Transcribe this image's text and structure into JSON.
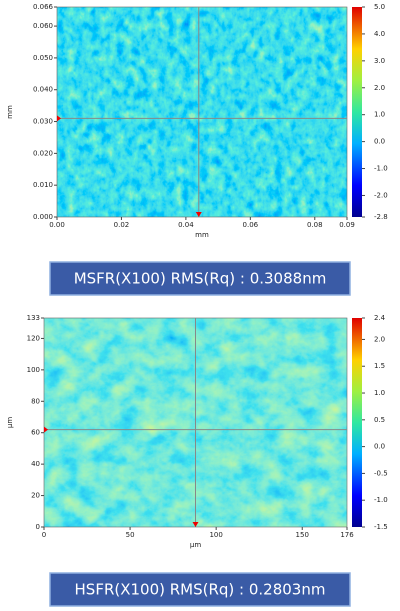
{
  "chart_data": [
    {
      "type": "heatmap",
      "xlabel": "mm",
      "ylabel": "mm",
      "xlim": [
        0,
        0.09
      ],
      "xticks": [
        {
          "value": 0,
          "label": "0.00"
        },
        {
          "value": 0.02,
          "label": "0.02"
        },
        {
          "value": 0.04,
          "label": "0.04"
        },
        {
          "value": 0.06,
          "label": "0.06"
        },
        {
          "value": 0.08,
          "label": "0.08"
        },
        0.09
      ],
      "ylim": [
        0,
        0.066
      ],
      "yticks": [
        {
          "value": 0,
          "label": "0.000"
        },
        {
          "value": 0.01,
          "label": "0.010"
        },
        {
          "value": 0.02,
          "label": "0.020"
        },
        {
          "value": 0.03,
          "label": "0.030"
        },
        {
          "value": 0.04,
          "label": "0.040"
        },
        {
          "value": 0.05,
          "label": "0.050"
        },
        {
          "value": 0.06,
          "label": "0.060"
        },
        0.066
      ],
      "clim": [
        -2.8,
        5
      ],
      "cticks": [
        {
          "value": 5,
          "label": "5.0"
        },
        {
          "value": 4,
          "label": "4.0"
        },
        {
          "value": 3,
          "label": "3.0"
        },
        {
          "value": 2,
          "label": "2.0"
        },
        {
          "value": 1,
          "label": "1.0"
        },
        {
          "value": 0,
          "label": "0.0"
        },
        {
          "value": -1,
          "label": "-1.0"
        },
        {
          "value": -2,
          "label": "-2.0"
        },
        -2.8
      ],
      "cursor": {
        "x": 0.044,
        "y": 0.031
      },
      "caption": "MSFR(X100) RMS(Rq) : 0.3088nm"
    },
    {
      "type": "heatmap",
      "xlabel": "μm",
      "ylabel": "μm",
      "xlim": [
        0,
        176
      ],
      "xticks": [
        0,
        50,
        100,
        150,
        176
      ],
      "ylim": [
        0,
        133
      ],
      "yticks": [
        0,
        20,
        40,
        60,
        80,
        100,
        120,
        133
      ],
      "clim": [
        -1.5,
        2.4
      ],
      "cticks": [
        2.4,
        {
          "value": 2,
          "label": "2.0"
        },
        1.5,
        {
          "value": 1,
          "label": "1.0"
        },
        0.5,
        {
          "value": 0,
          "label": "0.0"
        },
        -0.5,
        {
          "value": -1,
          "label": "-1.0"
        },
        -1.5
      ],
      "cursor": {
        "x": 88,
        "y": 62
      },
      "caption": "HSFR(X100) RMS(Rq) : 0.2803nm"
    }
  ]
}
